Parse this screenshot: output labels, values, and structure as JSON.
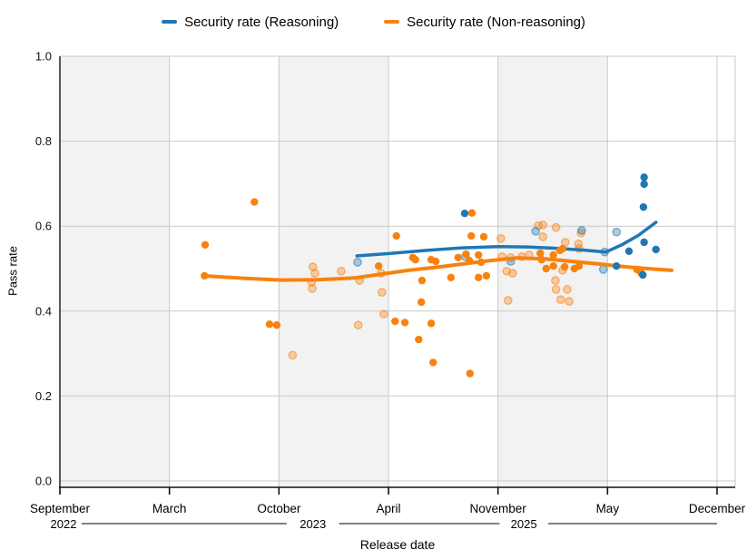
{
  "legend": {
    "items": [
      {
        "label": "Security rate (Reasoning)",
        "color": "#1f77b4"
      },
      {
        "label": "Security rate (Non-reasoning)",
        "color": "#f8820f"
      }
    ]
  },
  "style": {
    "band_color": "#f2f2f2",
    "grid_color": "#c9c9c9",
    "axis_color": "#111111",
    "blue": "#1f77b4",
    "orange": "#f8820f"
  },
  "chart_data": {
    "type": "scatter",
    "title": "",
    "xlabel": "Release date",
    "ylabel": "Pass rate",
    "ylim": [
      0,
      1
    ],
    "yticks": [
      0,
      0.2,
      0.4,
      0.6,
      0.8,
      1
    ],
    "grid": true,
    "legend_position": "top",
    "x_axis": {
      "start": "2022-09",
      "end": "2025-12",
      "month_ticks": [
        {
          "label": "September",
          "date": "2022-09",
          "t": 0
        },
        {
          "label": "March",
          "date": "2023-03",
          "t": 0.16667
        },
        {
          "label": "October",
          "date": "2023-10",
          "t": 0.33333
        },
        {
          "label": "April",
          "date": "2024-04",
          "t": 0.5
        },
        {
          "label": "November",
          "date": "2024-11",
          "t": 0.66667
        },
        {
          "label": "May",
          "date": "2025-05",
          "t": 0.83333
        },
        {
          "label": "December",
          "date": "2025-12",
          "t": 1
        }
      ],
      "year_labels": [
        {
          "label": "2022",
          "t": 0.001
        },
        {
          "label": "2023",
          "t": 0.385
        },
        {
          "label": "2025",
          "t": 0.706
        }
      ],
      "year_lines": [
        [
          0.033,
          0.345
        ],
        [
          0.425,
          0.669
        ],
        [
          0.743,
          1.0
        ]
      ]
    },
    "series": [
      {
        "name": "Security rate (Reasoning)",
        "color": "#1f77b4",
        "points": [
          {
            "d": "2024-09",
            "t": 0.616,
            "v": 0.63
          },
          {
            "d": "2025-07",
            "t": 0.889,
            "v": 0.715
          },
          {
            "d": "2025-07",
            "t": 0.889,
            "v": 0.699
          },
          {
            "d": "2025-07",
            "t": 0.888,
            "v": 0.645
          },
          {
            "d": "2025-07",
            "t": 0.889,
            "v": 0.562
          },
          {
            "d": "2025-08",
            "t": 0.907,
            "v": 0.545
          },
          {
            "d": "2025-06",
            "t": 0.866,
            "v": 0.541
          },
          {
            "d": "2025-06",
            "t": 0.847,
            "v": 0.506
          },
          {
            "d": "2025-07",
            "t": 0.887,
            "v": 0.485
          },
          {
            "d": "2024-02",
            "t": 0.453,
            "v": 0.515,
            "f": 1
          },
          {
            "d": "2024-09",
            "t": 0.617,
            "v": 0.528,
            "f": 1
          },
          {
            "d": "2024-11",
            "t": 0.686,
            "v": 0.517,
            "f": 1
          },
          {
            "d": "2025-01",
            "t": 0.724,
            "v": 0.588,
            "f": 1
          },
          {
            "d": "2025-03",
            "t": 0.794,
            "v": 0.59,
            "f": 1
          },
          {
            "d": "2025-04",
            "t": 0.829,
            "v": 0.539,
            "f": 1
          },
          {
            "d": "2025-04",
            "t": 0.827,
            "v": 0.498,
            "f": 1
          },
          {
            "d": "2025-05",
            "t": 0.847,
            "v": 0.586,
            "f": 1
          }
        ],
        "trend": [
          [
            0.452,
            0.53
          ],
          [
            0.503,
            0.536
          ],
          [
            0.558,
            0.543
          ],
          [
            0.613,
            0.549
          ],
          [
            0.668,
            0.552
          ],
          [
            0.71,
            0.551
          ],
          [
            0.752,
            0.548
          ],
          [
            0.793,
            0.544
          ],
          [
            0.831,
            0.539
          ],
          [
            0.855,
            0.556
          ],
          [
            0.88,
            0.578
          ],
          [
            0.907,
            0.609
          ]
        ]
      },
      {
        "name": "Security rate (Non-reasoning)",
        "color": "#f8820f",
        "points": [
          {
            "d": "2023-05",
            "t": 0.221,
            "v": 0.556
          },
          {
            "d": "2023-05",
            "t": 0.22,
            "v": 0.483
          },
          {
            "d": "2023-08",
            "t": 0.296,
            "v": 0.657
          },
          {
            "d": "2023-09",
            "t": 0.319,
            "v": 0.369
          },
          {
            "d": "2023-10",
            "t": 0.33,
            "v": 0.367
          },
          {
            "d": "2024-03",
            "t": 0.485,
            "v": 0.506
          },
          {
            "d": "2024-04",
            "t": 0.512,
            "v": 0.577
          },
          {
            "d": "2024-04",
            "t": 0.51,
            "v": 0.376
          },
          {
            "d": "2024-05",
            "t": 0.525,
            "v": 0.373
          },
          {
            "d": "2024-05",
            "t": 0.537,
            "v": 0.526
          },
          {
            "d": "2024-05",
            "t": 0.541,
            "v": 0.521
          },
          {
            "d": "2024-06",
            "t": 0.551,
            "v": 0.472
          },
          {
            "d": "2024-06",
            "t": 0.55,
            "v": 0.421
          },
          {
            "d": "2024-06",
            "t": 0.546,
            "v": 0.333
          },
          {
            "d": "2024-06",
            "t": 0.565,
            "v": 0.371
          },
          {
            "d": "2024-07",
            "t": 0.568,
            "v": 0.279
          },
          {
            "d": "2024-06",
            "t": 0.565,
            "v": 0.521
          },
          {
            "d": "2024-07",
            "t": 0.572,
            "v": 0.517
          },
          {
            "d": "2024-08",
            "t": 0.595,
            "v": 0.479
          },
          {
            "d": "2024-09",
            "t": 0.627,
            "v": 0.631
          },
          {
            "d": "2024-08",
            "t": 0.606,
            "v": 0.526
          },
          {
            "d": "2024-09",
            "t": 0.618,
            "v": 0.534
          },
          {
            "d": "2024-09",
            "t": 0.623,
            "v": 0.519
          },
          {
            "d": "2024-10",
            "t": 0.637,
            "v": 0.532
          },
          {
            "d": "2024-10",
            "t": 0.641,
            "v": 0.515
          },
          {
            "d": "2024-09",
            "t": 0.626,
            "v": 0.577
          },
          {
            "d": "2024-10",
            "t": 0.645,
            "v": 0.575
          },
          {
            "d": "2024-10",
            "t": 0.637,
            "v": 0.479
          },
          {
            "d": "2024-10",
            "t": 0.649,
            "v": 0.483
          },
          {
            "d": "2024-09",
            "t": 0.624,
            "v": 0.253
          },
          {
            "d": "2025-01",
            "t": 0.731,
            "v": 0.536
          },
          {
            "d": "2025-01",
            "t": 0.733,
            "v": 0.521
          },
          {
            "d": "2025-01",
            "t": 0.74,
            "v": 0.5
          },
          {
            "d": "2025-02",
            "t": 0.751,
            "v": 0.506
          },
          {
            "d": "2025-02",
            "t": 0.751,
            "v": 0.532
          },
          {
            "d": "2025-02",
            "t": 0.761,
            "v": 0.543
          },
          {
            "d": "2025-02",
            "t": 0.765,
            "v": 0.547
          },
          {
            "d": "2025-02",
            "t": 0.768,
            "v": 0.504
          },
          {
            "d": "2025-03",
            "t": 0.783,
            "v": 0.5
          },
          {
            "d": "2025-03",
            "t": 0.79,
            "v": 0.506
          },
          {
            "d": "2025-07",
            "t": 0.878,
            "v": 0.498
          },
          {
            "d": "2025-07",
            "t": 0.884,
            "v": 0.491
          },
          {
            "d": "2023-11",
            "t": 0.354,
            "v": 0.296,
            "f": 1
          },
          {
            "d": "2023-12",
            "t": 0.385,
            "v": 0.504,
            "f": 1
          },
          {
            "d": "2023-12",
            "t": 0.388,
            "v": 0.489,
            "f": 1
          },
          {
            "d": "2023-12",
            "t": 0.383,
            "v": 0.468,
            "f": 1
          },
          {
            "d": "2023-12",
            "t": 0.384,
            "v": 0.453,
            "f": 1
          },
          {
            "d": "2024-01",
            "t": 0.428,
            "v": 0.494,
            "f": 1
          },
          {
            "d": "2024-02",
            "t": 0.454,
            "v": 0.367,
            "f": 1
          },
          {
            "d": "2024-02",
            "t": 0.456,
            "v": 0.472,
            "f": 1
          },
          {
            "d": "2024-03",
            "t": 0.489,
            "v": 0.489,
            "f": 1
          },
          {
            "d": "2024-03",
            "t": 0.49,
            "v": 0.444,
            "f": 1
          },
          {
            "d": "2024-03",
            "t": 0.493,
            "v": 0.393,
            "f": 1
          },
          {
            "d": "2024-11",
            "t": 0.671,
            "v": 0.571,
            "f": 1
          },
          {
            "d": "2024-11",
            "t": 0.673,
            "v": 0.528,
            "f": 1
          },
          {
            "d": "2024-11",
            "t": 0.68,
            "v": 0.494,
            "f": 1
          },
          {
            "d": "2024-11",
            "t": 0.686,
            "v": 0.526,
            "f": 1
          },
          {
            "d": "2024-11",
            "t": 0.689,
            "v": 0.489,
            "f": 1
          },
          {
            "d": "2024-11",
            "t": 0.682,
            "v": 0.425,
            "f": 1
          },
          {
            "d": "2024-12",
            "t": 0.703,
            "v": 0.528,
            "f": 1
          },
          {
            "d": "2024-12",
            "t": 0.714,
            "v": 0.532,
            "f": 1
          },
          {
            "d": "2025-01",
            "t": 0.728,
            "v": 0.601,
            "f": 1
          },
          {
            "d": "2025-01",
            "t": 0.735,
            "v": 0.603,
            "f": 1
          },
          {
            "d": "2025-02",
            "t": 0.755,
            "v": 0.597,
            "f": 1
          },
          {
            "d": "2025-01",
            "t": 0.735,
            "v": 0.575,
            "f": 1
          },
          {
            "d": "2025-02",
            "t": 0.754,
            "v": 0.472,
            "f": 1
          },
          {
            "d": "2025-02",
            "t": 0.755,
            "v": 0.451,
            "f": 1
          },
          {
            "d": "2025-02",
            "t": 0.772,
            "v": 0.451,
            "f": 1
          },
          {
            "d": "2025-02",
            "t": 0.762,
            "v": 0.427,
            "f": 1
          },
          {
            "d": "2025-03",
            "t": 0.775,
            "v": 0.423,
            "f": 1
          },
          {
            "d": "2025-02",
            "t": 0.769,
            "v": 0.562,
            "f": 1
          },
          {
            "d": "2025-03",
            "t": 0.789,
            "v": 0.558,
            "f": 1
          },
          {
            "d": "2025-03",
            "t": 0.79,
            "v": 0.547,
            "f": 1
          },
          {
            "d": "2025-02",
            "t": 0.765,
            "v": 0.496,
            "f": 1
          },
          {
            "d": "2025-03",
            "t": 0.793,
            "v": 0.584,
            "f": 1
          }
        ],
        "trend": [
          [
            0.22,
            0.483
          ],
          [
            0.282,
            0.477
          ],
          [
            0.337,
            0.473
          ],
          [
            0.392,
            0.474
          ],
          [
            0.448,
            0.478
          ],
          [
            0.489,
            0.487
          ],
          [
            0.53,
            0.496
          ],
          [
            0.572,
            0.503
          ],
          [
            0.613,
            0.511
          ],
          [
            0.655,
            0.519
          ],
          [
            0.696,
            0.525
          ],
          [
            0.738,
            0.523
          ],
          [
            0.779,
            0.517
          ],
          [
            0.82,
            0.511
          ],
          [
            0.862,
            0.504
          ],
          [
            0.903,
            0.499
          ],
          [
            0.931,
            0.496
          ]
        ]
      }
    ]
  }
}
